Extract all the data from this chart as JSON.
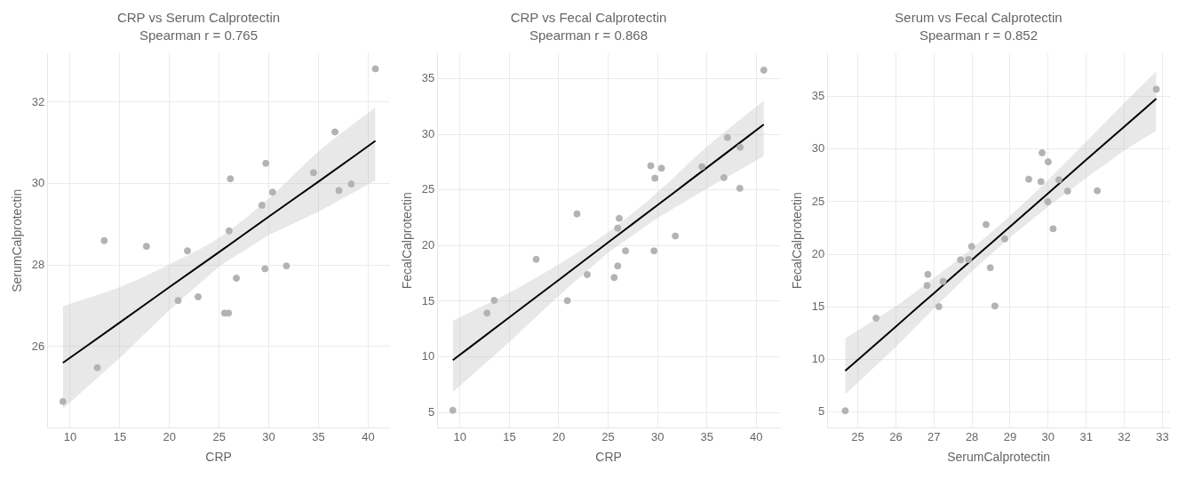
{
  "chart_data": [
    {
      "type": "scatter",
      "title": "CRP vs Serum Calprotectin",
      "subtitle": "Spearman r = 0.765",
      "xlabel": "CRP",
      "ylabel": "SerumCalprotectin",
      "xlim": [
        7.7,
        42.2
      ],
      "ylim": [
        24.0,
        33.2
      ],
      "xticks": [
        10,
        15,
        20,
        25,
        30,
        35,
        40
      ],
      "yticks": [
        26,
        28,
        30,
        32
      ],
      "grid": true,
      "series": [
        {
          "marker": "circle",
          "color": "#b3b3b3",
          "x": [
            9.27,
            12.73,
            13.43,
            17.68,
            20.87,
            21.81,
            22.88,
            25.55,
            25.94,
            26.0,
            26.13,
            26.73,
            29.31,
            29.61,
            29.7,
            30.38,
            31.77,
            34.5,
            36.66,
            37.06,
            38.3,
            40.73
          ],
          "values": [
            24.65,
            25.48,
            28.6,
            28.46,
            27.13,
            28.35,
            27.22,
            26.82,
            26.82,
            28.84,
            30.12,
            27.68,
            29.47,
            27.91,
            30.5,
            29.79,
            27.98,
            30.27,
            31.27,
            29.83,
            29.99,
            32.82
          ]
        },
        {
          "type": "line",
          "marker": "none",
          "color": "#000000",
          "x": [
            9.27,
            15,
            20,
            25,
            30,
            35,
            40.73
          ],
          "values": [
            25.6,
            26.59,
            27.46,
            28.32,
            29.19,
            30.05,
            31.05
          ],
          "lower": [
            24.47,
            25.72,
            26.9,
            27.97,
            28.74,
            29.31,
            30.08
          ],
          "upper": [
            26.99,
            27.46,
            28.02,
            28.67,
            29.64,
            30.79,
            31.87
          ]
        }
      ]
    },
    {
      "type": "scatter",
      "title": "CRP vs Fecal Calprotectin",
      "subtitle": "Spearman r = 0.868",
      "xlabel": "CRP",
      "ylabel": "FecalCalprotectin",
      "xlim": [
        7.7,
        42.4
      ],
      "ylim": [
        3.6,
        37.3
      ],
      "xticks": [
        10,
        15,
        20,
        25,
        30,
        35,
        40
      ],
      "yticks": [
        5,
        10,
        15,
        20,
        25,
        30,
        35
      ],
      "grid": true,
      "series": [
        {
          "marker": "circle",
          "color": "#b3b3b3",
          "x": [
            9.27,
            12.73,
            13.46,
            17.71,
            20.87,
            21.84,
            22.88,
            25.61,
            25.97,
            25.97,
            26.12,
            26.76,
            29.31,
            29.64,
            29.73,
            30.4,
            31.8,
            34.5,
            36.72,
            37.08,
            38.33,
            38.36,
            40.76
          ],
          "values": [
            5.19,
            13.93,
            15.08,
            18.77,
            15.05,
            22.86,
            17.4,
            17.13,
            18.17,
            21.58,
            22.46,
            19.53,
            27.19,
            19.53,
            26.07,
            26.97,
            20.87,
            27.1,
            26.12,
            29.73,
            25.16,
            28.85,
            35.79
          ]
        },
        {
          "type": "line",
          "marker": "none",
          "color": "#000000",
          "x": [
            9.27,
            15,
            20,
            25,
            30,
            35,
            40.76
          ],
          "values": [
            9.7,
            13.56,
            16.92,
            20.29,
            23.65,
            27.02,
            30.9
          ],
          "lower": [
            6.83,
            11.35,
            15.5,
            19.37,
            22.49,
            25.14,
            28.05
          ],
          "upper": [
            13.25,
            15.77,
            18.34,
            21.21,
            24.81,
            28.9,
            33.05
          ]
        }
      ]
    },
    {
      "type": "scatter",
      "title": "Serum vs Fecal Calprotectin",
      "subtitle": "Spearman r = 0.852",
      "xlabel": "SerumCalprotectin",
      "ylabel": "FecalCalprotectin",
      "xlim": [
        24.2,
        33.2
      ],
      "ylim": [
        3.5,
        39.1
      ],
      "xticks": [
        25,
        26,
        27,
        28,
        29,
        30,
        31,
        32,
        33
      ],
      "yticks": [
        5,
        10,
        15,
        20,
        25,
        30,
        35
      ],
      "grid": true,
      "series": [
        {
          "marker": "circle",
          "color": "#b3b3b3",
          "x": [
            24.67,
            25.48,
            26.82,
            26.84,
            27.13,
            27.24,
            27.7,
            27.91,
            27.99,
            28.37,
            28.48,
            28.6,
            28.86,
            29.49,
            29.81,
            29.84,
            29.99,
            30.0,
            30.13,
            30.28,
            30.51,
            31.29,
            32.84
          ],
          "values": [
            5.14,
            13.93,
            17.05,
            18.09,
            15.03,
            17.43,
            19.48,
            19.51,
            20.75,
            22.83,
            18.73,
            15.09,
            21.47,
            27.14,
            26.91,
            29.65,
            25.0,
            28.79,
            22.43,
            27.08,
            26.01,
            26.04,
            35.69
          ]
        },
        {
          "type": "line",
          "marker": "none",
          "color": "#000000",
          "x": [
            24.67,
            26,
            27,
            28,
            29,
            30,
            31,
            32,
            32.84
          ],
          "values": [
            8.93,
            13.14,
            16.31,
            19.48,
            22.64,
            25.81,
            28.98,
            32.14,
            34.8
          ],
          "lower": [
            6.68,
            11.21,
            14.86,
            18.39,
            21.62,
            24.53,
            27.25,
            29.88,
            31.76
          ],
          "upper": [
            12.02,
            15.07,
            17.76,
            20.57,
            23.66,
            27.09,
            30.71,
            34.4,
            37.4
          ]
        }
      ]
    }
  ]
}
